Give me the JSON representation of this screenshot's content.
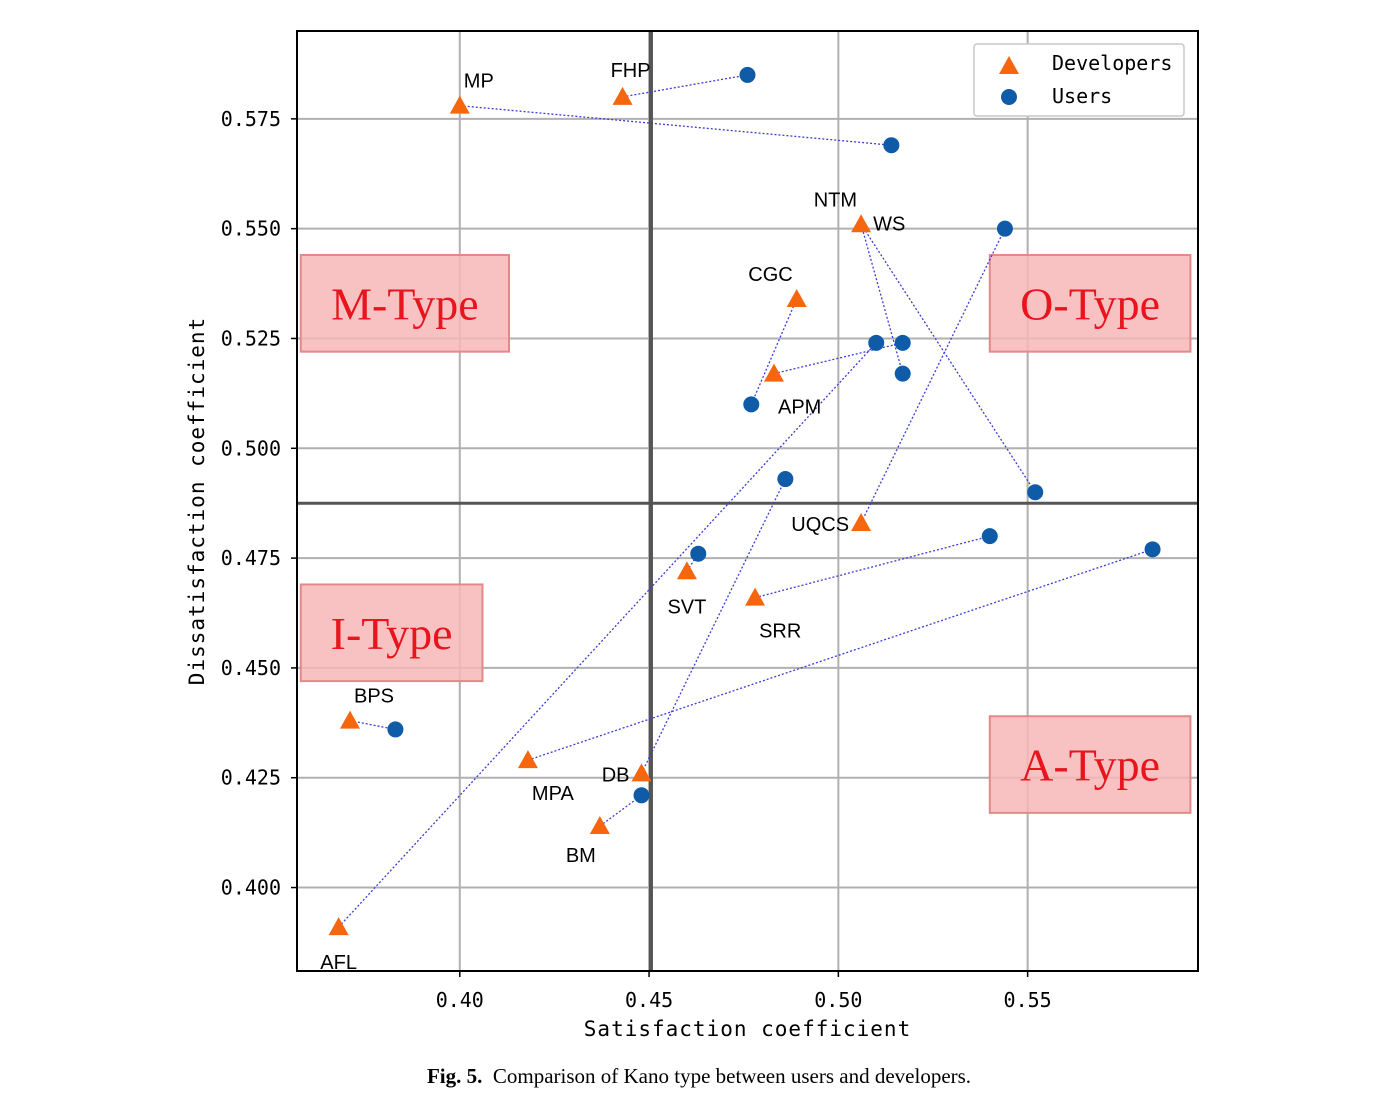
{
  "chart_data": {
    "type": "scatter",
    "xlabel": "Satisfaction coefficient",
    "ylabel": "Dissatisfaction coefficient",
    "xlim": [
      0.357,
      0.595
    ],
    "ylim": [
      0.381,
      0.595
    ],
    "xticks": [
      {
        "v": 0.4,
        "label": "0.40"
      },
      {
        "v": 0.45,
        "label": "0.45"
      },
      {
        "v": 0.5,
        "label": "0.50"
      },
      {
        "v": 0.55,
        "label": "0.55"
      }
    ],
    "yticks": [
      {
        "v": 0.4,
        "label": "0.400"
      },
      {
        "v": 0.425,
        "label": "0.425"
      },
      {
        "v": 0.45,
        "label": "0.450"
      },
      {
        "v": 0.475,
        "label": "0.475"
      },
      {
        "v": 0.5,
        "label": "0.500"
      },
      {
        "v": 0.525,
        "label": "0.525"
      },
      {
        "v": 0.55,
        "label": "0.550"
      },
      {
        "v": 0.575,
        "label": "0.575"
      }
    ],
    "grid": true,
    "divider": {
      "x": 0.4505,
      "y": 0.4875
    },
    "legend": {
      "placement": "top-right",
      "entries": [
        {
          "label": "Developers",
          "marker": "triangle",
          "color": "#f5660f"
        },
        {
          "label": "Users",
          "marker": "circle",
          "color": "#0f5ba7"
        }
      ]
    },
    "regions": [
      {
        "label": "M-Type",
        "x0": 0.358,
        "x1": 0.413,
        "y0": 0.522,
        "y1": 0.544
      },
      {
        "label": "O-Type",
        "x0": 0.54,
        "x1": 0.593,
        "y0": 0.522,
        "y1": 0.544
      },
      {
        "label": "I-Type",
        "x0": 0.358,
        "x1": 0.406,
        "y0": 0.447,
        "y1": 0.469
      },
      {
        "label": "A-Type",
        "x0": 0.54,
        "x1": 0.593,
        "y0": 0.417,
        "y1": 0.439
      }
    ],
    "points": [
      {
        "label": "MP",
        "dev": [
          0.4,
          0.578
        ],
        "user": [
          0.514,
          0.569
        ],
        "label_pos": "above-right"
      },
      {
        "label": "FHP",
        "dev": [
          0.443,
          0.58
        ],
        "user": [
          0.476,
          0.585
        ],
        "label_pos": "above"
      },
      {
        "label": "NTM",
        "dev": [
          0.506,
          0.551
        ],
        "user": [
          0.552,
          0.49
        ],
        "label_pos": "above-left"
      },
      {
        "label": "WS",
        "dev": [
          0.506,
          0.551
        ],
        "user": [
          0.517,
          0.517
        ],
        "label_pos": "right"
      },
      {
        "label": "CGC",
        "dev": [
          0.489,
          0.534
        ],
        "user": [
          0.477,
          0.51
        ],
        "label_pos": "above-left"
      },
      {
        "label": "APM",
        "dev": [
          0.483,
          0.517
        ],
        "user": [
          0.517,
          0.524
        ],
        "label_pos": "below-right"
      },
      {
        "label": "UQCS",
        "dev": [
          0.506,
          0.483
        ],
        "user": [
          0.544,
          0.55
        ],
        "label_pos": "left"
      },
      {
        "label": "SVT",
        "dev": [
          0.46,
          0.472
        ],
        "user": [
          0.463,
          0.476
        ],
        "label_pos": "below"
      },
      {
        "label": "SRR",
        "dev": [
          0.478,
          0.466
        ],
        "user": [
          0.54,
          0.48
        ],
        "label_pos": "below-right"
      },
      {
        "label": "BPS",
        "dev": [
          0.371,
          0.438
        ],
        "user": [
          0.383,
          0.436
        ],
        "label_pos": "above-right"
      },
      {
        "label": "MPA",
        "dev": [
          0.418,
          0.429
        ],
        "user": [
          0.583,
          0.477
        ],
        "label_pos": "below-right"
      },
      {
        "label": "DB",
        "dev": [
          0.448,
          0.426
        ],
        "user": [
          0.486,
          0.493
        ],
        "label_pos": "left"
      },
      {
        "label": "BM",
        "dev": [
          0.437,
          0.414
        ],
        "user": [
          0.448,
          0.421
        ],
        "label_pos": "below-left"
      },
      {
        "label": "AFL",
        "dev": [
          0.368,
          0.391
        ],
        "user": [
          0.51,
          0.524
        ],
        "label_pos": "below"
      }
    ]
  },
  "caption": {
    "prefix": "Fig. 5.",
    "text": "Comparison of Kano type between users and developers."
  }
}
